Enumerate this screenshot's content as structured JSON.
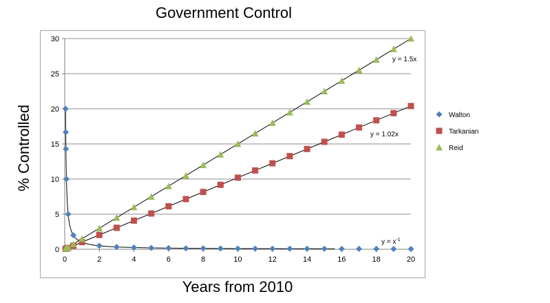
{
  "chart_data": {
    "type": "scatter",
    "title": "Government Control",
    "xlabel": "Years from 2010",
    "ylabel": "% Controlled",
    "xlim": [
      0,
      20
    ],
    "ylim": [
      0,
      30
    ],
    "xticks": [
      0,
      2,
      4,
      6,
      8,
      10,
      12,
      14,
      16,
      18,
      20
    ],
    "yticks": [
      0,
      5,
      10,
      15,
      20,
      25,
      30
    ],
    "grid": "horizontal",
    "legend_position": "right",
    "series": [
      {
        "name": "Walton",
        "marker": "diamond",
        "color": "#4F81BD",
        "x": [
          0.05,
          0.06,
          0.07,
          0.1,
          0.2,
          0.5,
          1,
          2,
          3,
          4,
          5,
          6,
          7,
          8,
          9,
          10,
          11,
          12,
          13,
          14,
          15,
          16,
          17,
          18,
          19,
          20
        ],
        "y": [
          20,
          16.67,
          14.29,
          10,
          5,
          2,
          1,
          0.5,
          0.33,
          0.25,
          0.2,
          0.17,
          0.14,
          0.13,
          0.11,
          0.1,
          0.09,
          0.08,
          0.08,
          0.07,
          0.07,
          0.06,
          0.06,
          0.06,
          0.05,
          0.05
        ]
      },
      {
        "name": "Tarkanian",
        "marker": "square",
        "color": "#C0504D",
        "x": [
          0.05,
          0.1,
          0.2,
          0.5,
          1,
          2,
          3,
          4,
          5,
          6,
          7,
          8,
          9,
          10,
          11,
          12,
          13,
          14,
          15,
          16,
          17,
          18,
          19,
          20
        ],
        "y": [
          0.05,
          0.1,
          0.2,
          0.51,
          1.02,
          2.04,
          3.06,
          4.08,
          5.1,
          6.12,
          7.14,
          8.16,
          9.18,
          10.2,
          11.22,
          12.24,
          13.26,
          14.28,
          15.3,
          16.32,
          17.34,
          18.36,
          19.38,
          20.4
        ]
      },
      {
        "name": "Reid",
        "marker": "triangle",
        "color": "#9BBB59",
        "x": [
          0.05,
          0.1,
          0.2,
          0.5,
          1,
          2,
          3,
          4,
          5,
          6,
          7,
          8,
          9,
          10,
          11,
          12,
          13,
          14,
          15,
          16,
          17,
          18,
          19,
          20
        ],
        "y": [
          0.08,
          0.15,
          0.3,
          0.75,
          1.5,
          3,
          4.5,
          6,
          7.5,
          9,
          10.5,
          12,
          13.5,
          15,
          16.5,
          18,
          19.5,
          21,
          22.5,
          24,
          25.5,
          27,
          28.5,
          30
        ]
      }
    ],
    "trendlines": [
      {
        "series": "Reid",
        "type": "linear",
        "slope": 1.5,
        "label": "y = 1.5x"
      },
      {
        "series": "Tarkanian",
        "type": "linear",
        "slope": 1.02,
        "label": "y = 1.02x"
      },
      {
        "series": "Walton",
        "type": "power",
        "exponent": -1,
        "label": "y = x",
        "label_superscript": "-1"
      }
    ]
  }
}
